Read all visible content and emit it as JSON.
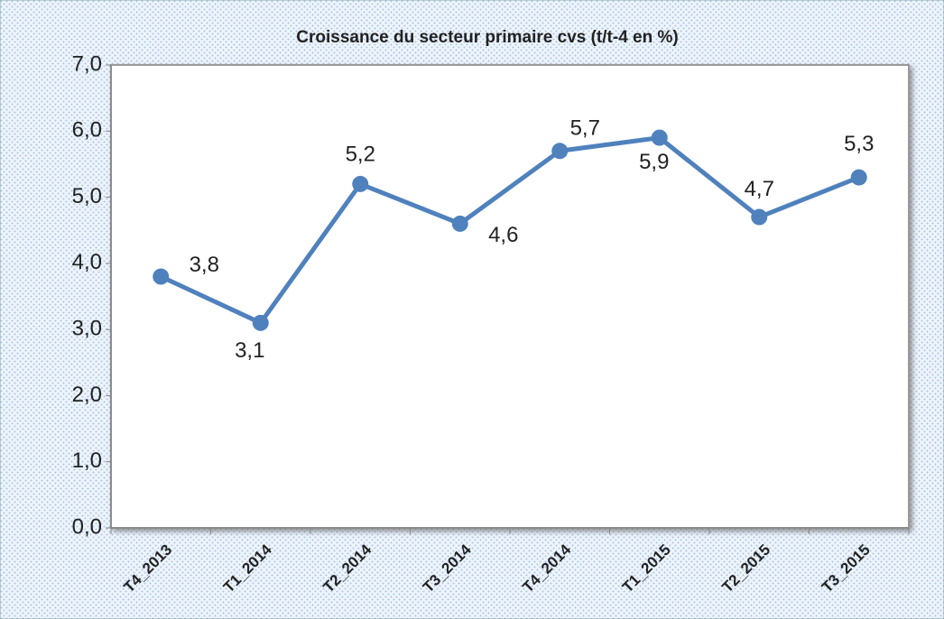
{
  "chart_data": {
    "type": "line",
    "title": "Croissance du secteur primaire cvs (t/t-4 en %)",
    "categories": [
      "T4_2013",
      "T1_2014",
      "T2_2014",
      "T3_2014",
      "T4_2014",
      "T1_2015",
      "T2_2015",
      "T3_2015"
    ],
    "series": [
      {
        "name": "Croissance du secteur primaire cvs",
        "color": "#4f81bd",
        "values": [
          3.8,
          3.1,
          5.2,
          4.6,
          5.7,
          5.9,
          4.7,
          5.3
        ],
        "value_labels": [
          "3,8",
          "3,1",
          "5,2",
          "4,6",
          "5,7",
          "5,9",
          "4,7",
          "5,3"
        ]
      }
    ],
    "ylim": [
      0,
      7
    ],
    "yticks": [
      {
        "value": 0,
        "label": "0,0"
      },
      {
        "value": 1,
        "label": "1,0"
      },
      {
        "value": 2,
        "label": "2,0"
      },
      {
        "value": 3,
        "label": "3,0"
      },
      {
        "value": 4,
        "label": "4,0"
      },
      {
        "value": 5,
        "label": "5,0"
      },
      {
        "value": 6,
        "label": "6,0"
      },
      {
        "value": 7,
        "label": "7,0"
      }
    ],
    "grid": false
  }
}
